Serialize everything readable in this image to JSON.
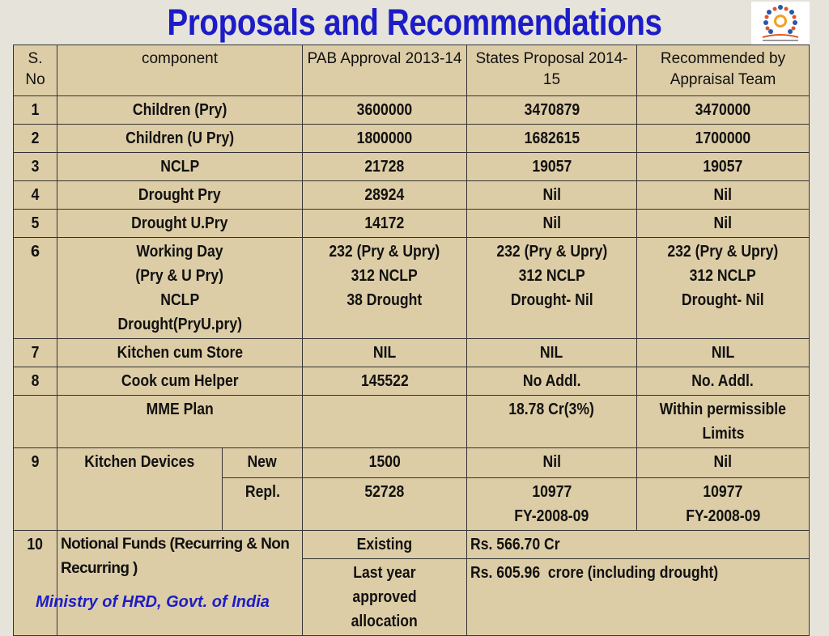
{
  "title": "Proposals and Recommendations",
  "footer": "Ministry of HRD, Govt. of India",
  "logo": {
    "icon": "scheme-logo-figures"
  },
  "colors": {
    "title": "#1c1cc8",
    "table_bg": "#ddcda6",
    "page_bg": "#e6e3da"
  },
  "table": {
    "headers": {
      "sno": "S. No",
      "component": "component",
      "pab": "PAB Approval 2013-14",
      "states": "States Proposal 2014-15",
      "recommended": "Recommended by Appraisal Team"
    },
    "rows": [
      {
        "sno": "1",
        "component": "Children (Pry)",
        "pab": "3600000",
        "states": "3470879",
        "rec": "3470000"
      },
      {
        "sno": "2",
        "component": "Children (U Pry)",
        "pab": "1800000",
        "states": "1682615",
        "rec": "1700000"
      },
      {
        "sno": "3",
        "component": "NCLP",
        "pab": "21728",
        "states": "19057",
        "rec": "19057"
      },
      {
        "sno": "4",
        "component": "Drought Pry",
        "pab": "28924",
        "states": "Nil",
        "rec": "Nil"
      },
      {
        "sno": "5",
        "component": "Drought U.Pry",
        "pab": "14172",
        "states": "Nil",
        "rec": "Nil"
      }
    ],
    "working_day": {
      "sno": "6",
      "component": [
        "Working Day",
        "(Pry & U Pry)",
        "NCLP",
        "Drought(PryU.pry)"
      ],
      "pab": [
        "232 (Pry & Upry)",
        "312 NCLP",
        "38 Drought"
      ],
      "states": [
        "232 (Pry & Upry)",
        "312 NCLP",
        "Drought- Nil"
      ],
      "rec": [
        "232 (Pry & Upry)",
        "312 NCLP",
        "Drought- Nil"
      ]
    },
    "kitchen_store": {
      "sno": "7",
      "component": "Kitchen cum Store",
      "pab": "NIL",
      "states": "NIL",
      "rec": "NIL"
    },
    "cook": {
      "sno": "8",
      "component": "Cook cum Helper",
      "pab": "145522",
      "states": "No Addl.",
      "rec": "No. Addl."
    },
    "mme": {
      "component": "MME Plan",
      "states": "18.78 Cr(3%)",
      "rec": [
        "Within permissible",
        "Limits"
      ]
    },
    "kitchen_devices": {
      "sno": "9",
      "component": "Kitchen Devices",
      "new": {
        "label": "New",
        "pab": "1500",
        "states": "Nil",
        "rec": "Nil"
      },
      "repl": {
        "label": "Repl.",
        "pab": "52728",
        "states": [
          "10977",
          "FY-2008-09"
        ],
        "rec": [
          "10977",
          "FY-2008-09"
        ]
      }
    },
    "notional": {
      "sno": "10",
      "component": "Notional Funds (Recurring & Non Recurring )",
      "existing": {
        "label": "Existing",
        "value": "Rs. 566.70 Cr"
      },
      "last_year": {
        "label": [
          "Last year",
          "approved",
          "allocation"
        ],
        "value": "Rs. 605.96  crore (including drought)"
      }
    }
  }
}
